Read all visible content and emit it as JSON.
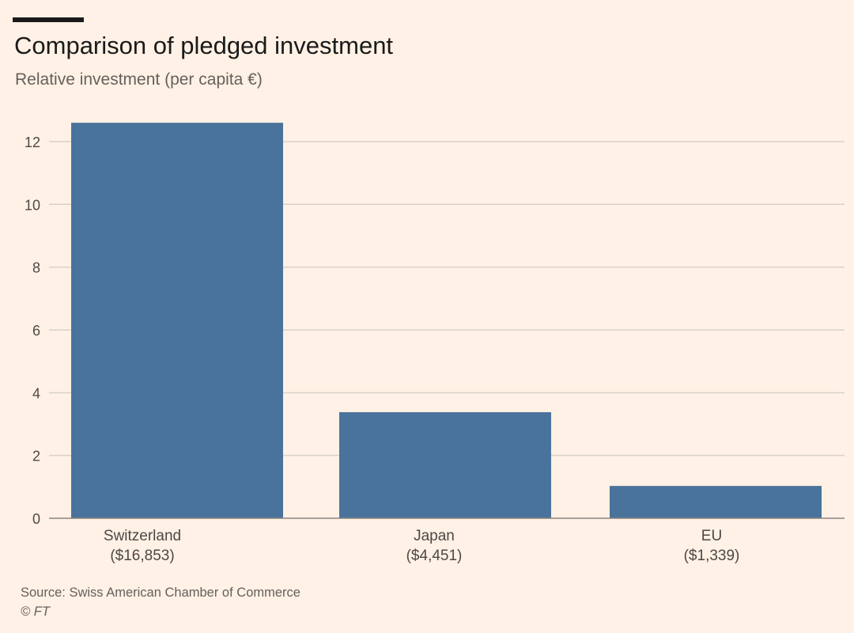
{
  "header": {
    "title": "Comparison of pledged investment",
    "subtitle": "Relative investment (per capita €)"
  },
  "footer": {
    "source": "Source: Swiss American Chamber of Commerce",
    "copyright": "© FT"
  },
  "colors": {
    "background": "#fff1e5",
    "bar": "#4a739c",
    "gridline": "#d9d1c9",
    "axis_text": "#4d4845"
  },
  "chart_data": {
    "type": "bar",
    "title": "Comparison of pledged investment",
    "subtitle": "Relative investment (per capita €)",
    "categories": [
      "Switzerland",
      "Japan",
      "EU"
    ],
    "category_sublabels": [
      "($16,853)",
      "($4,451)",
      "($1,339)"
    ],
    "values": [
      12.6,
      3.38,
      1.03
    ],
    "xlabel": "",
    "ylabel": "",
    "ylim": [
      0,
      13
    ],
    "yticks": [
      0,
      2,
      4,
      6,
      8,
      10,
      12
    ],
    "grid": true,
    "legend": "none"
  }
}
